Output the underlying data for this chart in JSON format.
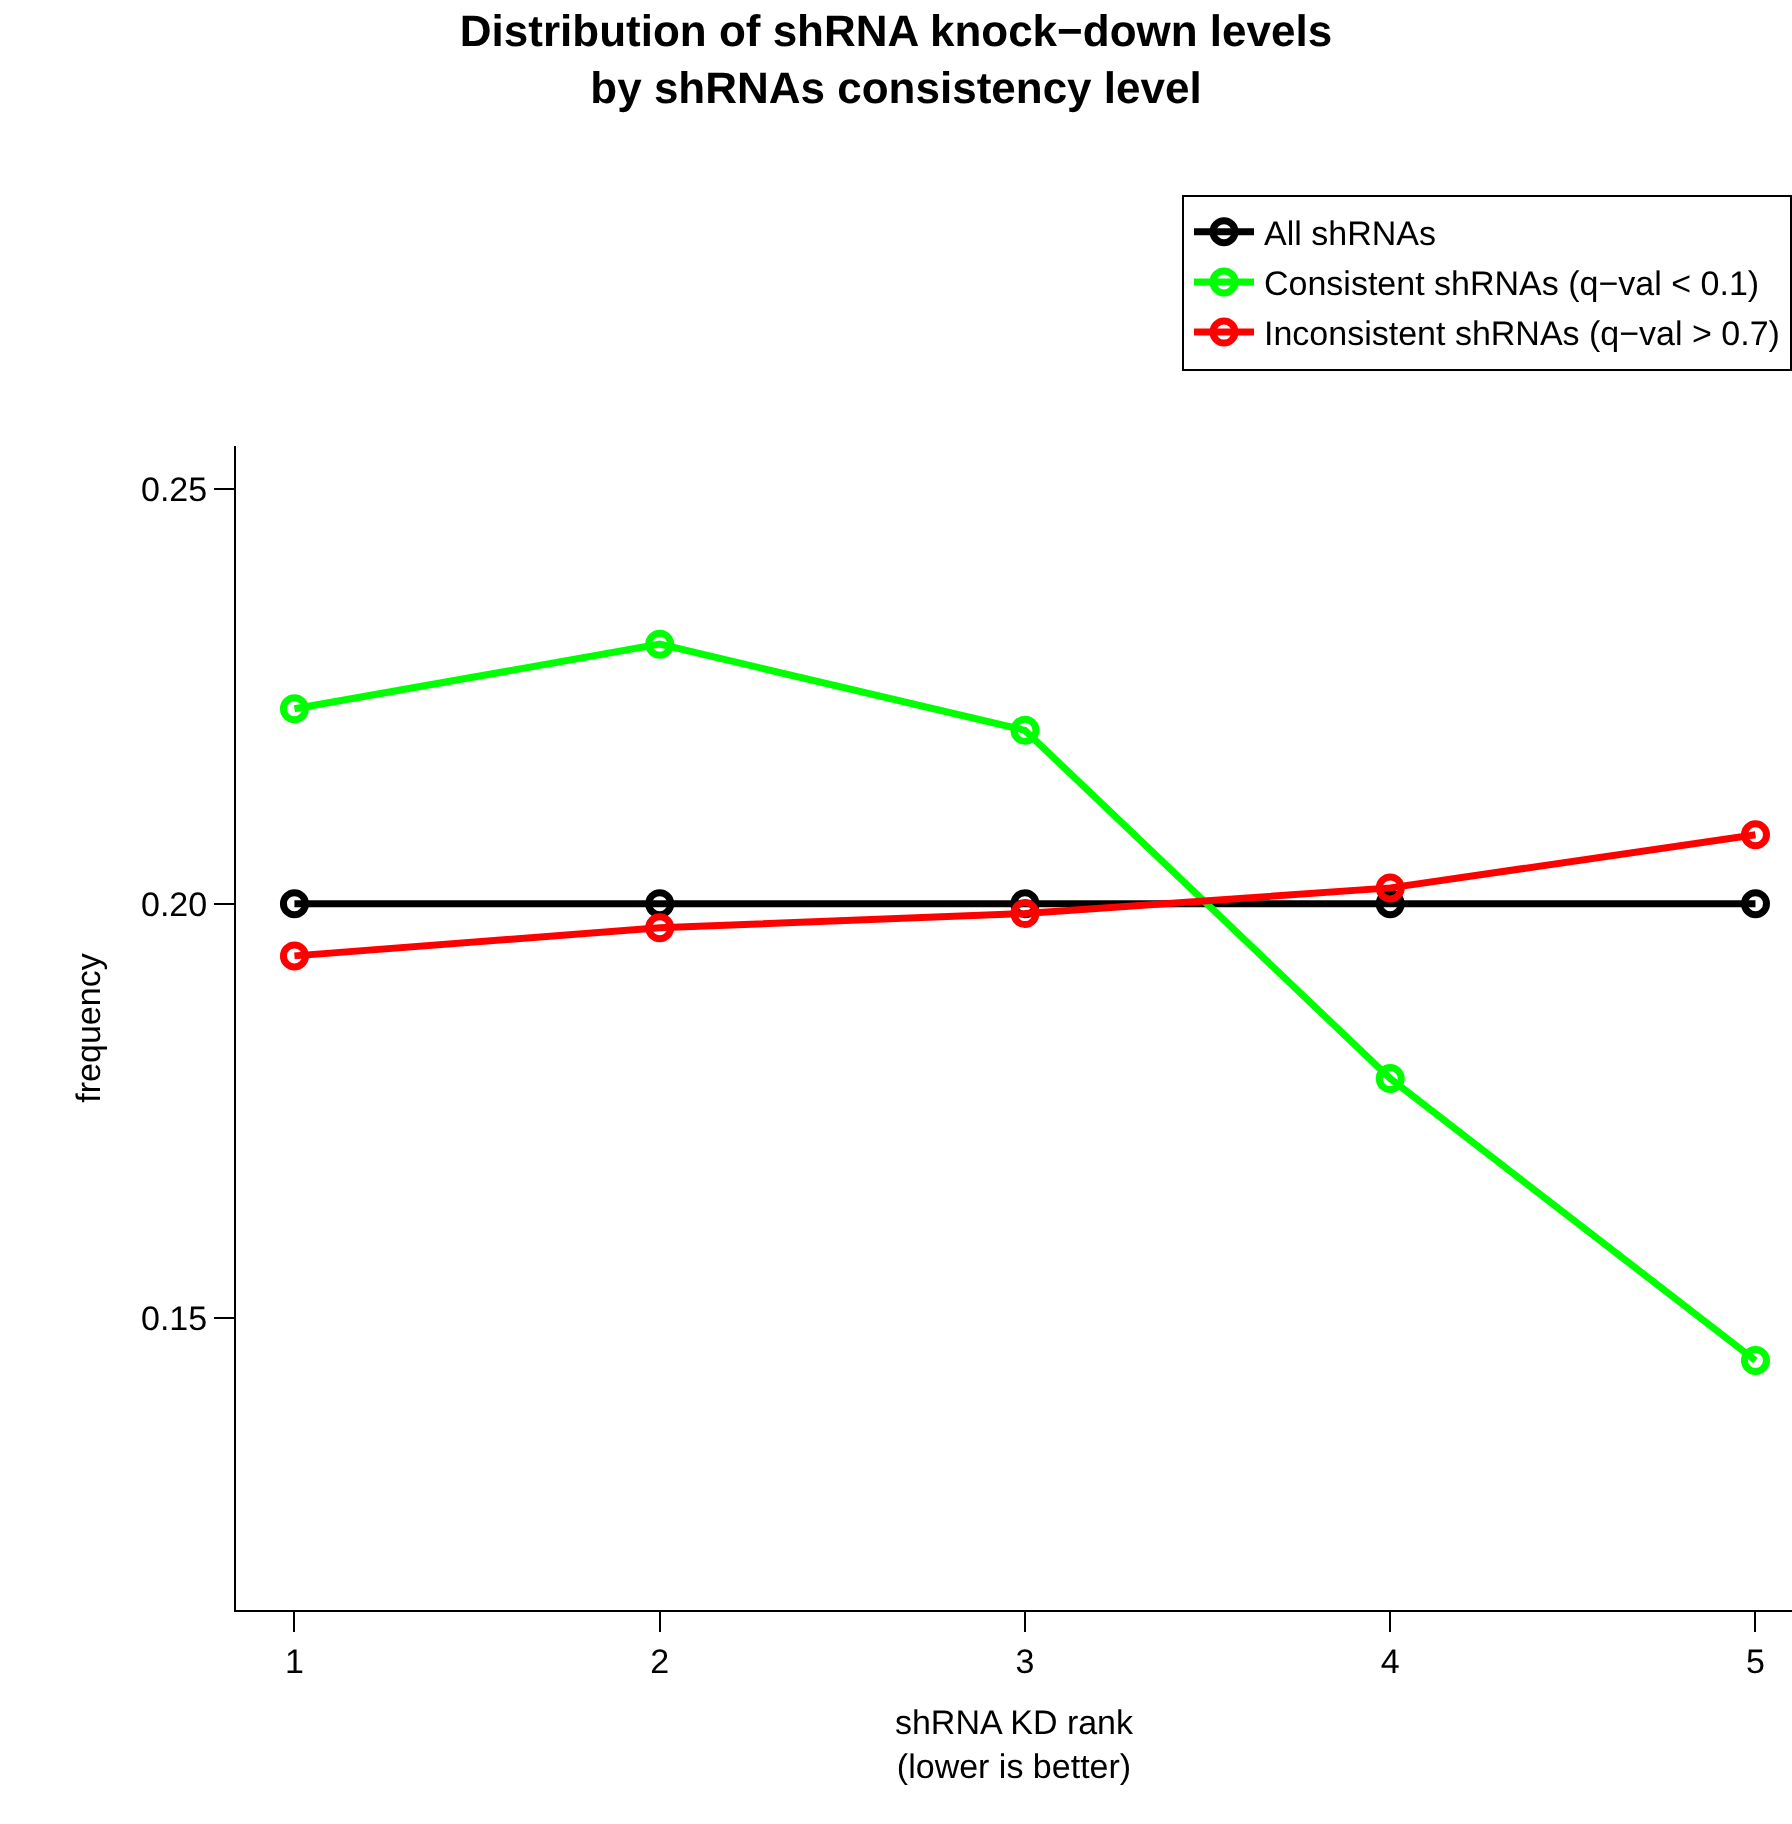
{
  "chart_data": {
    "type": "line",
    "title": "Distribution of shRNA knock−down levels\nby shRNAs consistency level",
    "xlabel": "shRNA KD rank\n(lower is better)",
    "ylabel": "frequency",
    "x": [
      1,
      2,
      3,
      4,
      5
    ],
    "series": [
      {
        "name": "All shRNAs",
        "color": "#000000",
        "values": [
          0.2,
          0.2,
          0.2,
          0.2,
          0.2
        ]
      },
      {
        "name": "Consistent shRNAs (q−val < 0.1)",
        "color": "#00ff00",
        "values": [
          0.2235,
          0.2313,
          0.2209,
          0.1789,
          0.1449
        ]
      },
      {
        "name": "Inconsistent shRNAs (q−val > 0.7)",
        "color": "#ff0000",
        "values": [
          0.1937,
          0.1971,
          0.1988,
          0.2019,
          0.2083
        ]
      }
    ],
    "xlim": [
      0.84,
      5.1
    ],
    "xticks": [
      1,
      2,
      3,
      4,
      5
    ],
    "ylim": [
      0.1148,
      0.2552
    ],
    "yticks": [
      {
        "value": 0.15,
        "label": "0.15"
      },
      {
        "value": 0.2,
        "label": "0.20"
      },
      {
        "value": 0.25,
        "label": "0.25"
      }
    ],
    "marker": "circle",
    "line_style": "solid",
    "legend": "top right"
  }
}
